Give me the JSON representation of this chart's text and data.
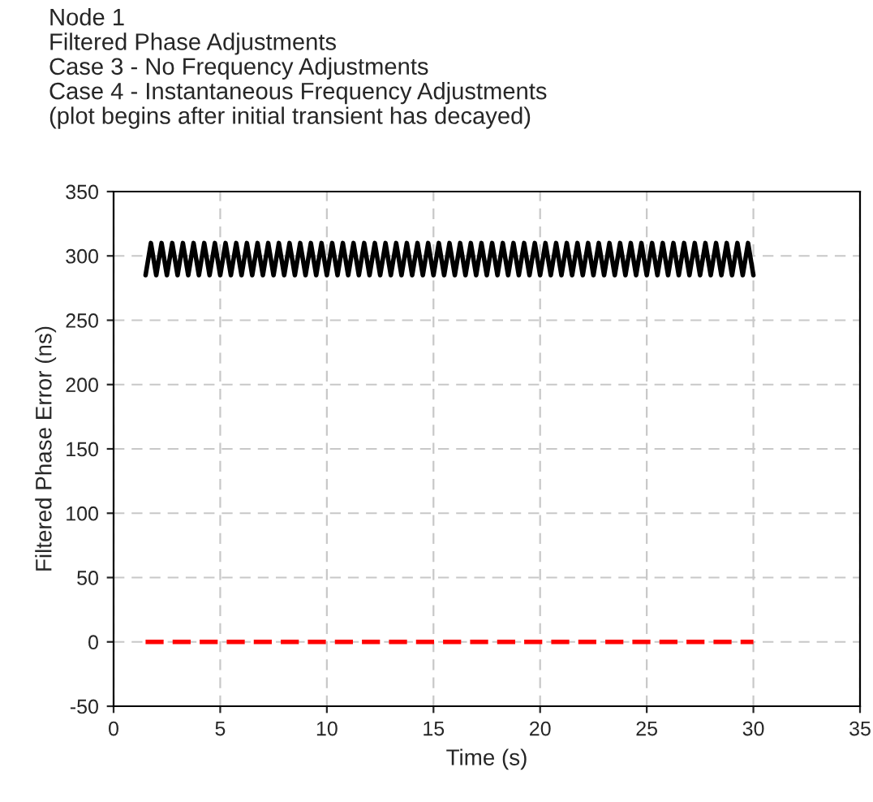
{
  "chart_data": {
    "type": "line",
    "title": "Node 1",
    "subtitle": "Filtered Phase Adjustments\nCase 3 - No Frequency Adjustments\nCase 4 - Instantaneous Frequency Adjustments\n(plot begins after initial transient has decayed)",
    "xlabel": "Time (s)",
    "ylabel": "Filtered Phase Error (ns)",
    "series": [
      {
        "color": "#000000",
        "x": [
          1.5,
          1.75,
          2,
          2.25,
          2.5,
          2.75,
          3,
          3.25,
          3.5,
          3.75,
          4,
          4.25,
          4.5,
          4.75,
          5,
          5.25,
          5.5,
          5.75,
          6,
          6.25,
          6.5,
          6.75,
          7,
          7.25,
          7.5,
          7.75,
          8,
          8.25,
          8.5,
          8.75,
          9,
          9.25,
          9.5,
          9.75,
          10,
          10.25,
          10.5,
          10.75,
          11,
          11.25,
          11.5,
          11.75,
          12,
          12.25,
          12.5,
          12.75,
          13,
          13.25,
          13.5,
          13.75,
          14,
          14.25,
          14.5,
          14.75,
          15,
          15.25,
          15.5,
          15.75,
          16,
          16.25,
          16.5,
          16.75,
          17,
          17.25,
          17.5,
          17.75,
          18,
          18.25,
          18.5,
          18.75,
          19,
          19.25,
          19.5,
          19.75,
          20,
          20.25,
          20.5,
          20.75,
          21,
          21.25,
          21.5,
          21.75,
          22,
          22.25,
          22.5,
          22.75,
          23,
          23.25,
          23.5,
          23.75,
          24,
          24.25,
          24.5,
          24.75,
          25,
          25.25,
          25.5,
          25.75,
          26,
          26.25,
          26.5,
          26.75,
          27,
          27.25,
          27.5,
          27.75,
          28,
          28.25,
          28.5,
          28.75,
          29,
          29.25,
          29.5,
          29.75,
          30
        ],
        "values": [
          285,
          310,
          285,
          310,
          285,
          310,
          285,
          310,
          285,
          310,
          285,
          310,
          285,
          310,
          285,
          310,
          285,
          310,
          285,
          310,
          285,
          310,
          285,
          310,
          285,
          310,
          285,
          310,
          285,
          310,
          285,
          310,
          285,
          310,
          285,
          310,
          285,
          310,
          285,
          310,
          285,
          310,
          285,
          310,
          285,
          310,
          285,
          310,
          285,
          310,
          285,
          310,
          285,
          310,
          285,
          310,
          285,
          310,
          285,
          310,
          285,
          310,
          285,
          310,
          285,
          310,
          285,
          310,
          285,
          310,
          285,
          310,
          285,
          310,
          285,
          310,
          285,
          310,
          285,
          310,
          285,
          310,
          285,
          310,
          285,
          310,
          285,
          310,
          285,
          310,
          285,
          310,
          285,
          310,
          285,
          310,
          285,
          310,
          285,
          310,
          285,
          310,
          285,
          310,
          285,
          310,
          285,
          310,
          285,
          310,
          285,
          310,
          285,
          310,
          285
        ],
        "line_style": "solid"
      },
      {
        "color": "#ff0000",
        "x": [
          1.5,
          30
        ],
        "values": [
          0,
          0
        ],
        "line_style": "dashed"
      }
    ],
    "xlim": [
      0,
      35
    ],
    "xticks": [
      0,
      5,
      10,
      15,
      20,
      25,
      30,
      35
    ],
    "ylim": [
      -50,
      350
    ],
    "yticks": [
      -50,
      0,
      50,
      100,
      150,
      200,
      250,
      300,
      350
    ],
    "grid": true,
    "legend": false,
    "marker": "none"
  }
}
